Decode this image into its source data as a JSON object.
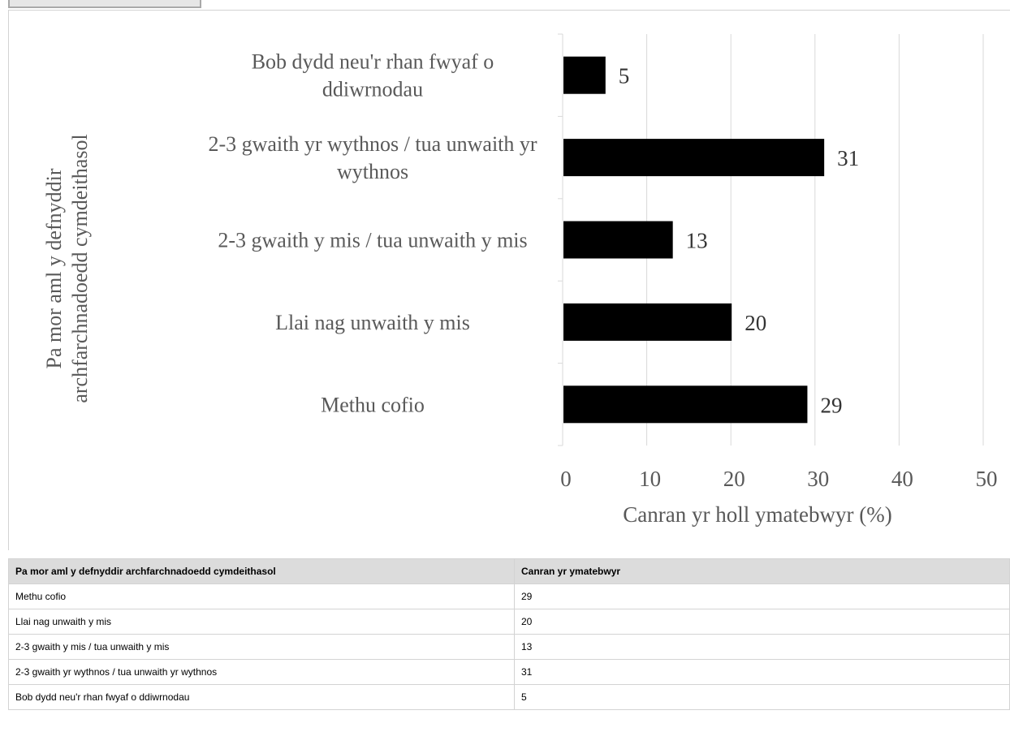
{
  "chart_data": {
    "type": "bar",
    "orientation": "horizontal",
    "categories": [
      "Bob dydd neu'r rhan fwyaf o ddiwrnodau",
      "2-3 gwaith yr wythnos / tua unwaith yr wythnos",
      "2-3 gwaith y mis / tua unwaith y mis",
      "Llai nag unwaith y mis",
      "Methu cofio"
    ],
    "category_lines": [
      [
        "Bob dydd neu'r rhan fwyaf o",
        "ddiwrnodau"
      ],
      [
        "2-3 gwaith yr wythnos / tua unwaith yr",
        "wythnos"
      ],
      [
        "2-3 gwaith y mis / tua unwaith y mis"
      ],
      [
        "Llai nag unwaith y mis"
      ],
      [
        "Methu cofio"
      ]
    ],
    "values": [
      5,
      31,
      13,
      20,
      29
    ],
    "xlabel": "Canran yr holl ymatebwyr (%)",
    "ylabel_lines": [
      "Pa mor aml y defnyddir",
      "archfarchnadoedd cymdeithasol"
    ],
    "xlim": [
      0,
      50
    ],
    "xticks": [
      "0",
      "10",
      "20",
      "30",
      "40",
      "50"
    ],
    "grid": true,
    "bar_color": "#000000",
    "grid_color": "#d9d9d9",
    "text_color": "#595959"
  },
  "table": {
    "headers": [
      "Pa mor aml y defnyddir archfarchnadoedd cymdeithasol",
      "Canran yr ymatebwyr"
    ],
    "rows": [
      [
        "Methu cofio",
        "29"
      ],
      [
        "Llai nag unwaith y mis",
        "20"
      ],
      [
        "2-3 gwaith y mis / tua unwaith y mis",
        "13"
      ],
      [
        "2-3 gwaith yr wythnos / tua unwaith yr wythnos",
        "31"
      ],
      [
        "Bob dydd neu'r rhan fwyaf o ddiwrnodau",
        "5"
      ]
    ]
  }
}
